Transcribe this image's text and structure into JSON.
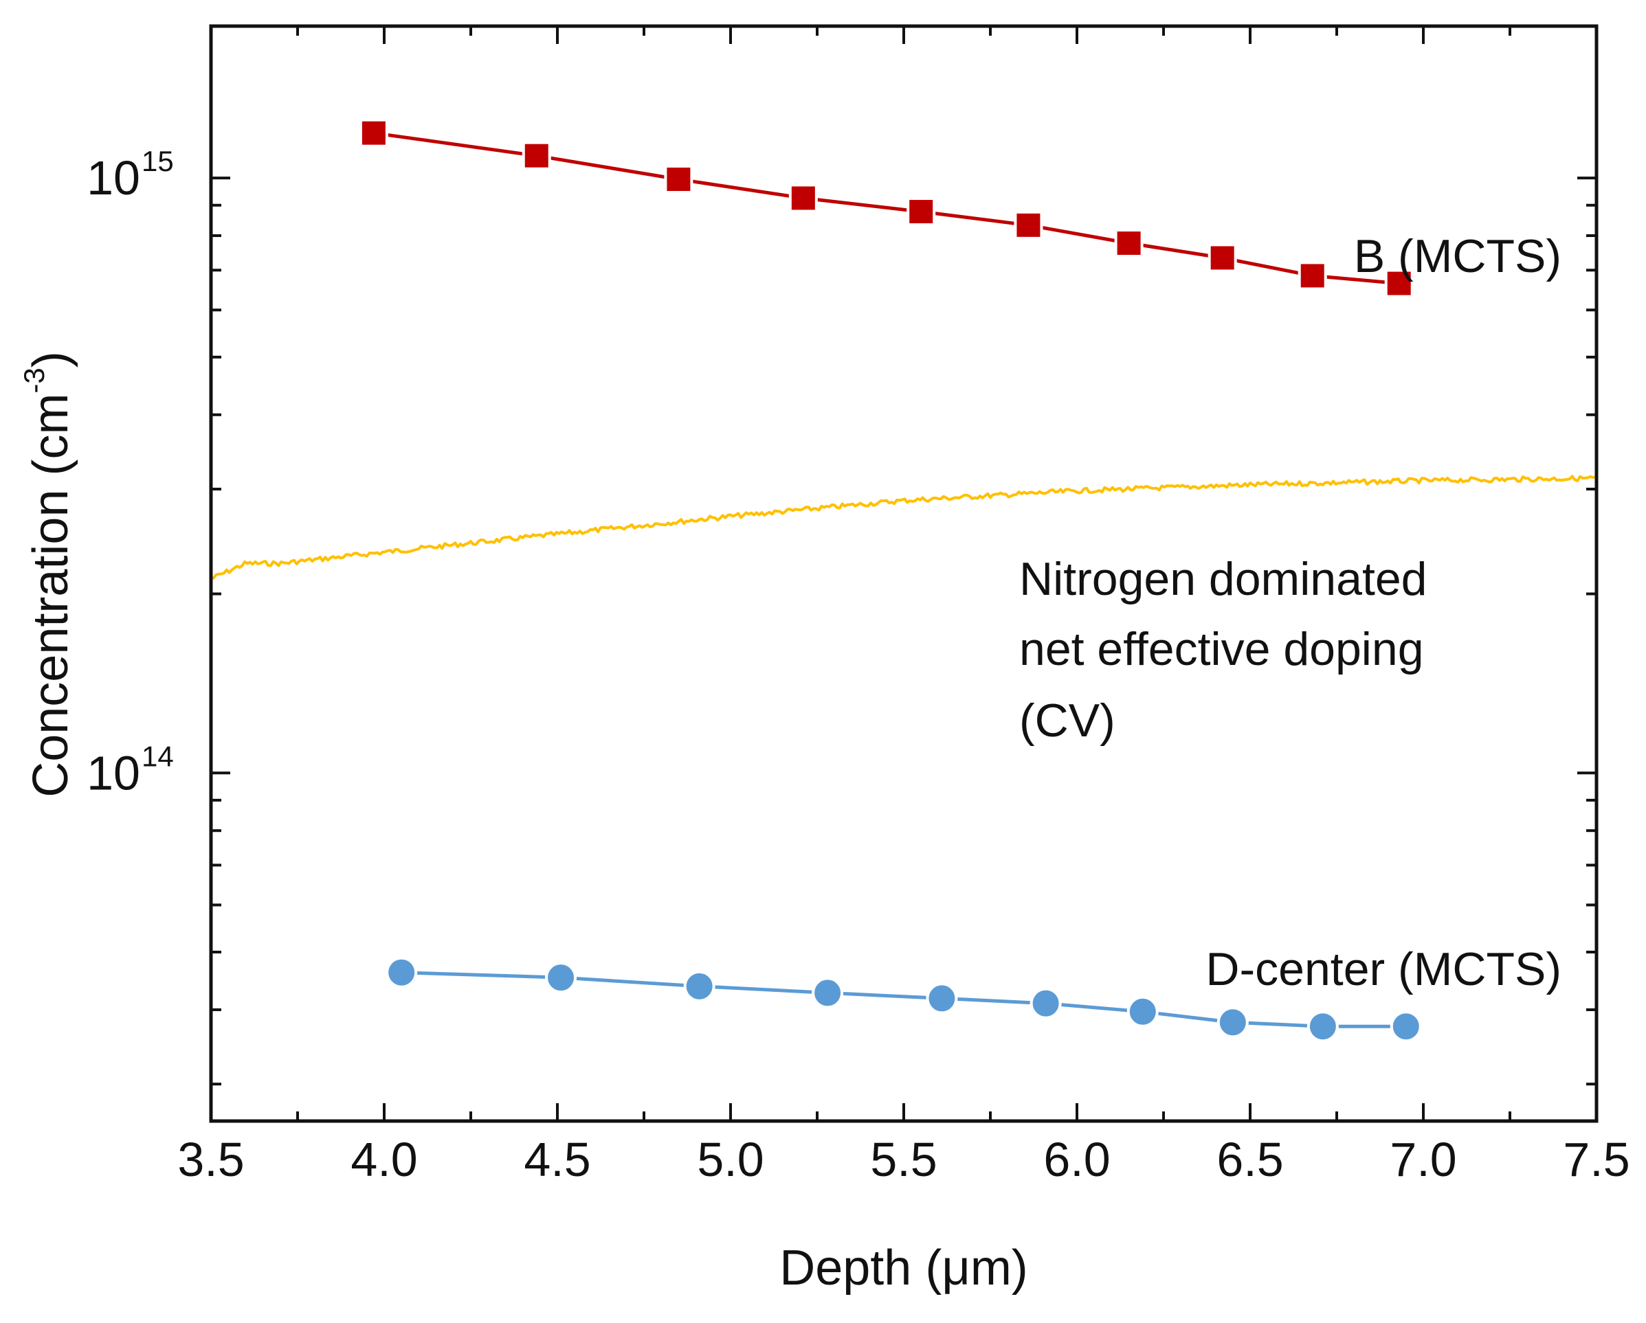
{
  "chart_data": {
    "type": "line",
    "xlabel": "Depth (μm)",
    "ylabel_text": "Concentration (cm",
    "ylabel_sup": "-3",
    "ylabel_close": ")",
    "xlim": [
      3.5,
      7.5
    ],
    "ylim": [
      26000000000000,
      1800000000000000
    ],
    "yscale": "log",
    "grid": false,
    "legend": "none",
    "x_ticks": [
      "3.5",
      "4.0",
      "4.5",
      "5.0",
      "5.5",
      "6.0",
      "6.5",
      "7.0",
      "7.5"
    ],
    "y_ticks": [
      {
        "base": "10",
        "exp": "14",
        "value": 100000000000000
      },
      {
        "base": "10",
        "exp": "15",
        "value": 1000000000000000
      }
    ],
    "series": [
      {
        "name": "B (MCTS)",
        "color": "#C00000",
        "marker": "square",
        "x": [
          3.97,
          4.44,
          4.85,
          5.21,
          5.55,
          5.86,
          6.15,
          6.42,
          6.68,
          6.93
        ],
        "y": [
          1190000000000000,
          1090000000000000,
          995000000000000,
          925000000000000,
          878000000000000,
          833000000000000,
          777000000000000,
          734000000000000,
          685000000000000,
          665000000000000
        ]
      },
      {
        "name": "Nitrogen dominated net effective doping (CV)",
        "color": "#FFC000",
        "marker": "none",
        "x": [
          3.5,
          3.6,
          3.7,
          4.0,
          4.5,
          5.0,
          5.5,
          6.0,
          6.5,
          7.0,
          7.5
        ],
        "y": [
          212000000000000,
          225000000000000,
          225000000000000,
          235000000000000,
          252000000000000,
          270000000000000,
          287000000000000,
          298000000000000,
          305000000000000,
          310000000000000,
          313000000000000
        ]
      },
      {
        "name": "D-center (MCTS)",
        "color": "#5B9BD5",
        "marker": "circle",
        "x": [
          4.05,
          4.51,
          4.91,
          5.28,
          5.61,
          5.91,
          6.19,
          6.45,
          6.71,
          6.95
        ],
        "y": [
          46200000000000,
          45300000000000,
          43800000000000,
          42700000000000,
          41800000000000,
          41000000000000,
          39700000000000,
          38100000000000,
          37500000000000,
          37500000000000
        ]
      }
    ],
    "annotations": [
      {
        "series": "B (MCTS)",
        "lines": [
          "B (MCTS)"
        ]
      },
      {
        "series": "Nitrogen dominated net effective doping (CV)",
        "lines": [
          "Nitrogen dominated",
          "net effective doping",
          "(CV)"
        ]
      },
      {
        "series": "D-center (MCTS)",
        "lines": [
          "D-center (MCTS)"
        ]
      }
    ]
  }
}
